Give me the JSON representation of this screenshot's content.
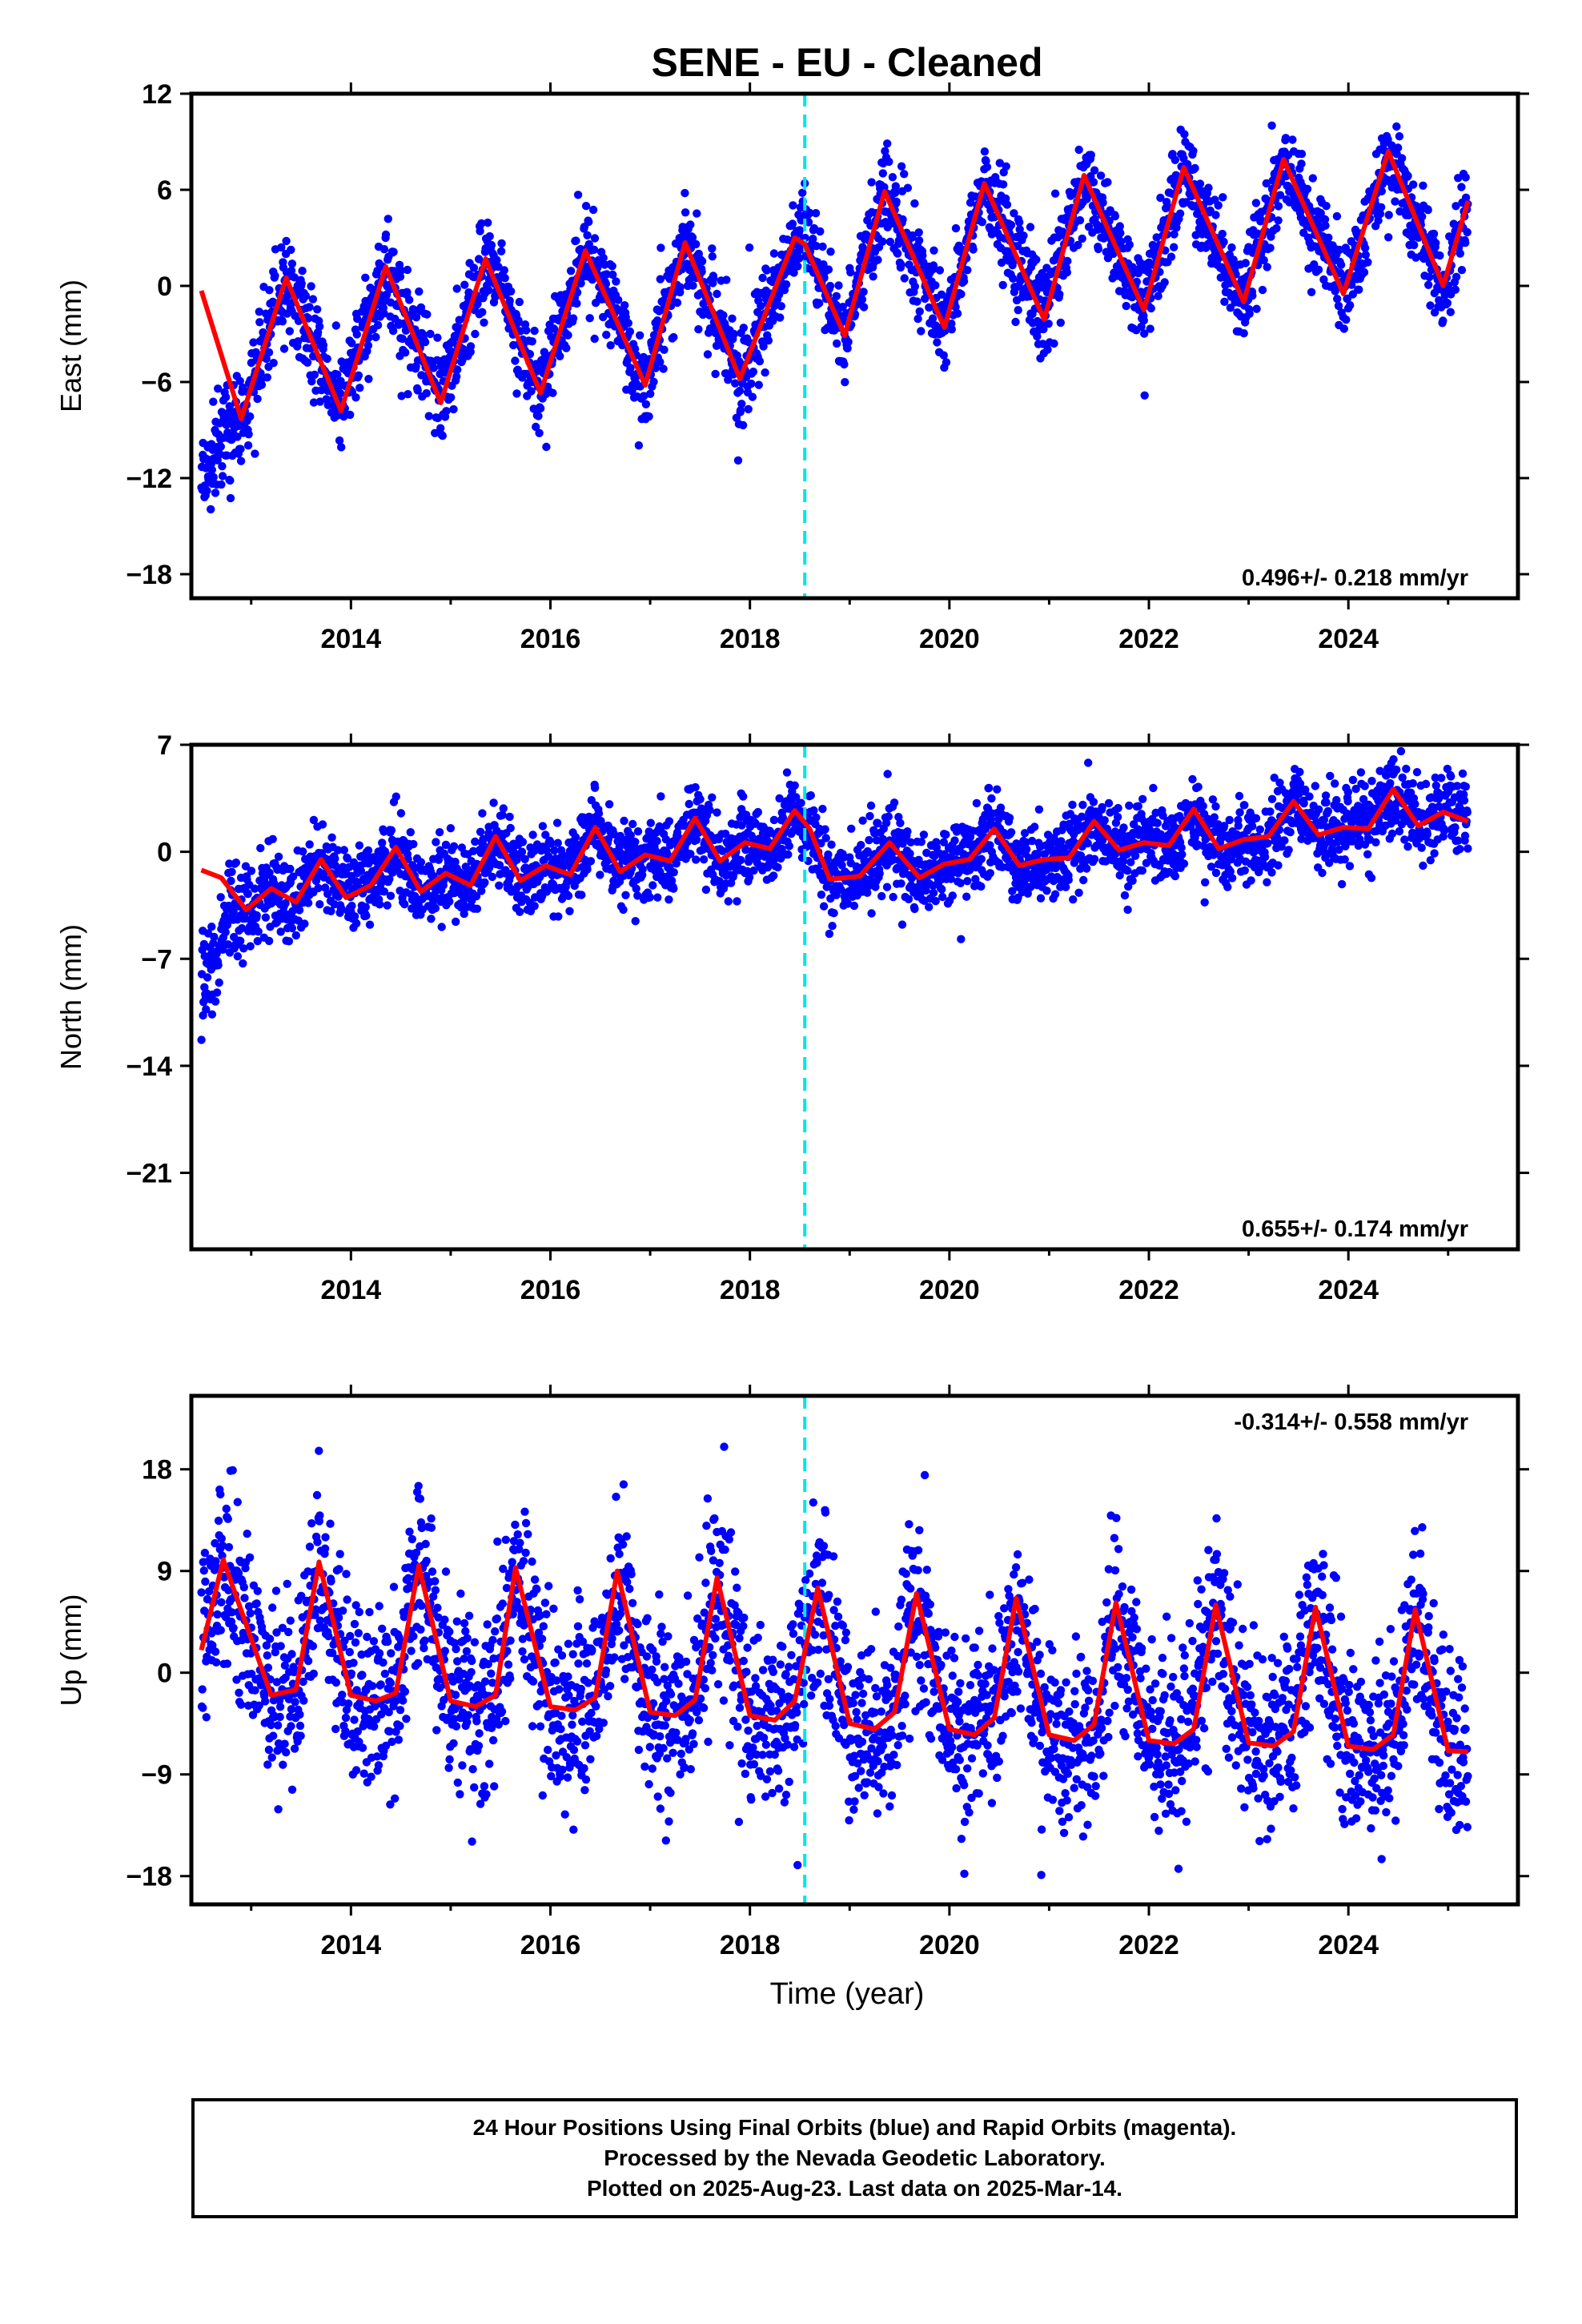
{
  "title": "SENE  - EU - Cleaned",
  "xlabel": "Time (year)",
  "footer": {
    "line1": "24 Hour Positions Using Final Orbits (blue) and Rapid Orbits (magenta).",
    "line2": "Processed by the Nevada Geodetic Laboratory.",
    "line3": "Plotted on 2025-Aug-23. Last data on 2025-Mar-14."
  },
  "colors": {
    "points": "#0000ff",
    "fit": "#ff0000",
    "event": "#00e5e5",
    "axes": "#000000"
  },
  "chart_data": [
    {
      "type": "scatter",
      "ylabel": "East (mm)",
      "rate_label": "0.496+/- 0.218 mm/yr",
      "xlim": [
        2012.4,
        2025.7
      ],
      "ylim": [
        -19.5,
        12
      ],
      "yticks": [
        12,
        6,
        0,
        -6,
        -12,
        -18
      ],
      "yticklabels": [
        "12",
        "6",
        "0",
        "−6",
        "−12",
        "−18"
      ],
      "xticks": [
        2014,
        2016,
        2018,
        2020,
        2022,
        2024
      ],
      "xticklabels": [
        "2014",
        "2016",
        "2018",
        "2020",
        "2022",
        "2024"
      ],
      "event_line_x": 2018.55,
      "data_start": 2012.5,
      "data_end": 2025.2,
      "series": [
        {
          "kind": "points",
          "trend": [
            2012.5,
            -2.0,
            2025.2,
            4.0
          ],
          "step": [
            2018.55,
            3.0
          ],
          "annual_amp": 4.0,
          "phase": 0.35,
          "noise": 1.4,
          "early_period_end": 2012.9,
          "early_offset": -12
        },
        {
          "kind": "fit",
          "x": [
            2012.5,
            2012.9,
            2013.35,
            2013.9,
            2014.35,
            2014.9,
            2015.35,
            2015.9,
            2016.35,
            2016.95,
            2017.35,
            2017.9,
            2018.45,
            2018.55,
            2018.95,
            2019.35,
            2019.95,
            2020.35,
            2020.95,
            2021.35,
            2021.95,
            2022.35,
            2022.95,
            2023.35,
            2023.95,
            2024.4,
            2024.95,
            2025.2
          ],
          "y": [
            -0.3,
            -8.3,
            0.5,
            -7.8,
            1.2,
            -7.3,
            1.7,
            -6.7,
            2.2,
            -6.2,
            2.7,
            -5.8,
            3.0,
            2.6,
            -3.1,
            5.9,
            -2.6,
            6.4,
            -2.1,
            6.9,
            -1.5,
            7.4,
            -1.0,
            7.9,
            -0.5,
            8.4,
            0.0,
            5.3
          ]
        }
      ]
    },
    {
      "type": "scatter",
      "ylabel": "North (mm)",
      "rate_label": "0.655+/- 0.174 mm/yr",
      "xlim": [
        2012.4,
        2025.7
      ],
      "ylim": [
        -26,
        7
      ],
      "yticks": [
        7,
        0,
        -7,
        -14,
        -21
      ],
      "yticklabels": [
        "7",
        "0",
        "−7",
        "−14",
        "−21"
      ],
      "xticks": [
        2014,
        2016,
        2018,
        2020,
        2022,
        2024
      ],
      "xticklabels": [
        "2014",
        "2016",
        "2018",
        "2020",
        "2022",
        "2024"
      ],
      "event_line_x": 2018.55,
      "data_start": 2012.5,
      "data_end": 2025.2,
      "series": [
        {
          "kind": "points",
          "trend": [
            2012.5,
            -3.0,
            2025.2,
            2.5
          ],
          "step": [
            2018.55,
            -3.0
          ],
          "annual_amp": 1.3,
          "phase": 0.45,
          "noise": 1.3,
          "early_period_end": 2012.9,
          "early_offset": -9
        },
        {
          "kind": "fit",
          "x": [
            2012.5,
            2012.7,
            2012.95,
            2013.2,
            2013.45,
            2013.7,
            2013.95,
            2014.2,
            2014.45,
            2014.7,
            2014.95,
            2015.2,
            2015.45,
            2015.7,
            2015.95,
            2016.2,
            2016.45,
            2016.7,
            2016.95,
            2017.2,
            2017.45,
            2017.7,
            2017.95,
            2018.2,
            2018.45,
            2018.6,
            2018.8,
            2019.1,
            2019.4,
            2019.7,
            2019.95,
            2020.2,
            2020.45,
            2020.7,
            2020.95,
            2021.2,
            2021.45,
            2021.7,
            2021.95,
            2022.2,
            2022.45,
            2022.7,
            2022.95,
            2023.2,
            2023.45,
            2023.7,
            2023.95,
            2024.2,
            2024.45,
            2024.7,
            2024.95,
            2025.2
          ],
          "y": [
            -1.2,
            -1.7,
            -3.8,
            -2.4,
            -3.3,
            -0.5,
            -3.0,
            -2.2,
            0.3,
            -2.6,
            -1.4,
            -2.2,
            1.0,
            -1.9,
            -0.9,
            -1.5,
            1.6,
            -1.3,
            -0.2,
            -0.6,
            2.2,
            -0.6,
            0.6,
            0.2,
            2.7,
            1.5,
            -1.8,
            -1.6,
            0.6,
            -1.7,
            -0.8,
            -0.5,
            1.5,
            -0.9,
            -0.5,
            -0.4,
            2.0,
            0.1,
            0.6,
            0.4,
            2.8,
            0.2,
            0.8,
            1.0,
            3.3,
            1.1,
            1.6,
            1.5,
            4.1,
            1.7,
            2.6,
            2.0
          ]
        }
      ]
    },
    {
      "type": "scatter",
      "ylabel": "Up (mm)",
      "rate_label": "-0.314+/- 0.558 mm/yr",
      "xlim": [
        2012.4,
        2025.7
      ],
      "ylim": [
        -20.5,
        24.5
      ],
      "yticks": [
        18,
        9,
        0,
        -9,
        -18
      ],
      "yticklabels": [
        "18",
        "9",
        "0",
        "−9",
        "−18"
      ],
      "xticks": [
        2014,
        2016,
        2018,
        2020,
        2022,
        2024
      ],
      "xticklabels": [
        "2014",
        "2016",
        "2018",
        "2020",
        "2022",
        "2024"
      ],
      "event_line_x": 2018.55,
      "data_start": 2012.5,
      "data_end": 2025.2,
      "series": [
        {
          "kind": "points",
          "trend": [
            2012.5,
            4.0,
            2025.2,
            0.0
          ],
          "step": [
            2018.55,
            0.0
          ],
          "annual_amp": 6.5,
          "phase": 0.72,
          "noise": 4.0,
          "early_period_end": 2012.5,
          "early_offset": 0
        },
        {
          "kind": "fit",
          "x": [
            2012.5,
            2012.72,
            2013.0,
            2013.2,
            2013.45,
            2013.68,
            2014.0,
            2014.25,
            2014.45,
            2014.68,
            2015.0,
            2015.25,
            2015.45,
            2015.65,
            2016.0,
            2016.25,
            2016.45,
            2016.67,
            2017.0,
            2017.25,
            2017.45,
            2017.67,
            2018.0,
            2018.25,
            2018.45,
            2018.68,
            2019.0,
            2019.25,
            2019.45,
            2019.67,
            2020.0,
            2020.25,
            2020.45,
            2020.67,
            2021.0,
            2021.25,
            2021.45,
            2021.67,
            2022.0,
            2022.25,
            2022.45,
            2022.67,
            2023.0,
            2023.25,
            2023.45,
            2023.67,
            2024.0,
            2024.25,
            2024.45,
            2024.67,
            2025.0,
            2025.2
          ],
          "y": [
            2.0,
            10.0,
            3.0,
            -2.0,
            -1.5,
            9.8,
            -2.0,
            -2.5,
            -1.8,
            9.5,
            -2.5,
            -3.0,
            -2.0,
            9.3,
            -3.0,
            -3.3,
            -2.2,
            9.0,
            -3.5,
            -3.8,
            -2.4,
            8.4,
            -3.8,
            -4.2,
            -2.5,
            7.5,
            -4.5,
            -5.0,
            -3.5,
            7.0,
            -5.0,
            -5.5,
            -4.0,
            6.6,
            -5.5,
            -6.0,
            -4.6,
            6.2,
            -6.0,
            -6.3,
            -5.0,
            6.0,
            -6.2,
            -6.5,
            -5.2,
            5.8,
            -6.5,
            -6.8,
            -5.5,
            5.6,
            -6.9,
            -7.0
          ]
        }
      ]
    }
  ]
}
